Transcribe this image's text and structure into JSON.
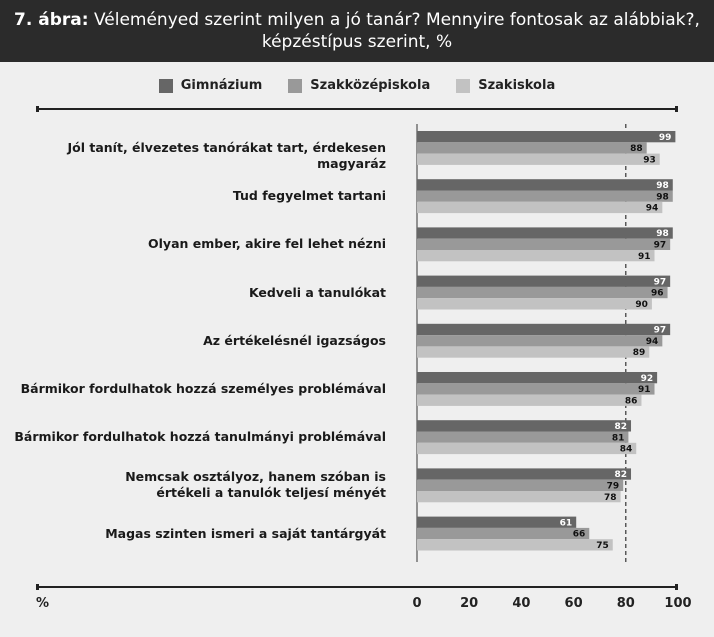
{
  "title": {
    "prefix": "7. ábra:",
    "line1": "Véleményed szerint milyen a jó tanár? Mennyire fontosak az alábbiak?,",
    "line2": "képzéstípus szerint, %"
  },
  "axis_unit": "%",
  "colors": {
    "background": "#efefef",
    "title_bar": "#2b2b2b",
    "series": [
      "#666666",
      "#999999",
      "#c2c2c2"
    ]
  },
  "chart_data": {
    "type": "bar",
    "orientation": "horizontal",
    "categories": [
      "Jól tanít, élvezetes tanórákat tart, érdekesen magyaráz",
      "Tud fegyelmet tartani",
      "Olyan ember, akire fel lehet nézni",
      "Kedveli a tanulókat",
      "Az értékelésnél igazságos",
      "Bármikor fordulhatok hozzá személyes problémával",
      "Bármikor fordulhatok hozzá tanulmányi problémával",
      "Nemcsak osztályoz, hanem szóban is\nértékeli a tanulók teljesí ményét",
      "Magas szinten ismeri a saját tantárgyát"
    ],
    "series": [
      {
        "name": "Gimnázium",
        "values": [
          99,
          98,
          98,
          97,
          97,
          92,
          82,
          82,
          61
        ]
      },
      {
        "name": "Szakközépiskola",
        "values": [
          88,
          98,
          97,
          96,
          94,
          91,
          81,
          79,
          66
        ]
      },
      {
        "name": "Szakiskola",
        "values": [
          93,
          94,
          91,
          90,
          89,
          86,
          84,
          78,
          75
        ]
      }
    ],
    "xlim": [
      0,
      100
    ],
    "xticks": [
      0,
      20,
      40,
      60,
      80,
      100
    ],
    "reference_line": 80,
    "legend_position": "top",
    "grid": false
  }
}
